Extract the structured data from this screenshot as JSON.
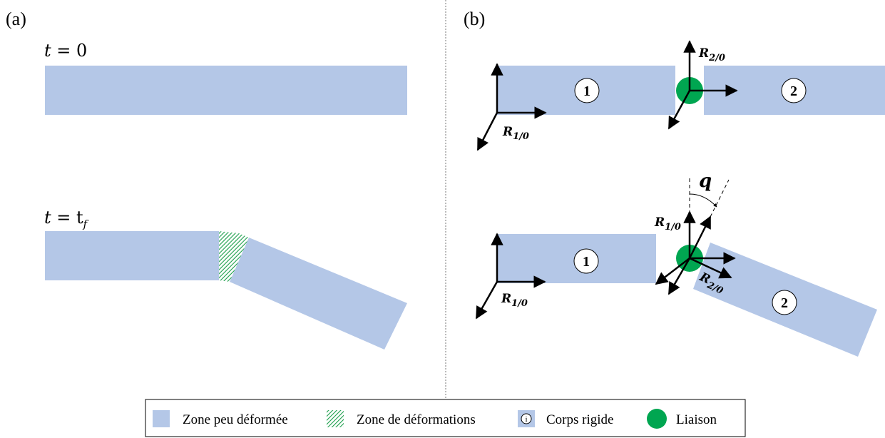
{
  "panels": {
    "a_label": "(a)",
    "b_label": "(b)"
  },
  "time": {
    "t0_main": "t",
    "t0_rest": " = 0",
    "tf_main": "t",
    "tf_rest": " = t",
    "tf_sub": "f"
  },
  "frames": {
    "main": "R",
    "r10_sub": "1/0",
    "r20_sub": "2/0"
  },
  "bodies": {
    "one": "1",
    "two": "2"
  },
  "angle": "q",
  "legend": {
    "zone_peu": "Zone peu déformée",
    "zone_def": "Zone de déformations",
    "corps_symbol": "i",
    "corps": "Corps rigide",
    "liaison": "Liaison"
  },
  "colors": {
    "zone": "#b4c7e7",
    "hatch": "#1a9e4a",
    "joint": "#00a651"
  }
}
